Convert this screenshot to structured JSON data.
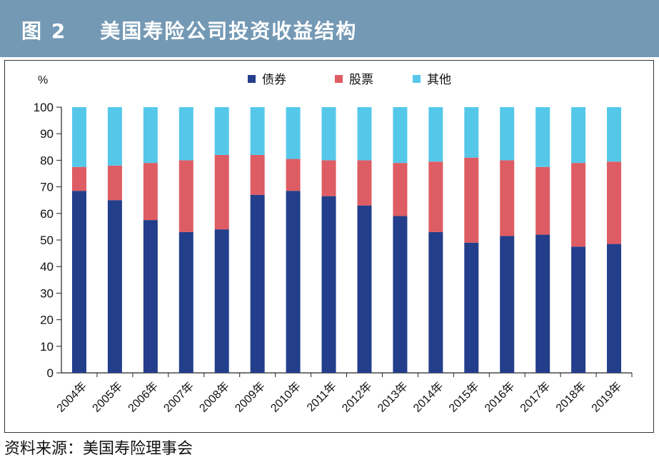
{
  "header": {
    "title": "图 2    美国寿险公司投资收益结构"
  },
  "source": "资料来源：美国寿险理事会",
  "colors": {
    "bonds": "#233e8b",
    "stocks": "#de5c63",
    "other": "#55c8ea",
    "header": "#7499b5"
  },
  "chart_data": {
    "type": "bar",
    "stacked": true,
    "title": "",
    "ylabel": "%",
    "xlabel": "",
    "ylim": [
      0,
      100
    ],
    "yticks": [
      0,
      10,
      20,
      30,
      40,
      50,
      60,
      70,
      80,
      90,
      100
    ],
    "grid": false,
    "legend_position": "top",
    "categories": [
      "2004年",
      "2005年",
      "2006年",
      "2007年",
      "2008年",
      "2009年",
      "2010年",
      "2011年",
      "2012年",
      "2013年",
      "2014年",
      "2015年",
      "2016年",
      "2017年",
      "2018年",
      "2019年"
    ],
    "series": [
      {
        "name": "债券",
        "color": "#233e8b",
        "values": [
          68.5,
          65,
          57.5,
          53,
          54,
          67,
          68.5,
          66.5,
          63,
          59,
          53,
          49,
          51.5,
          52,
          47.5,
          48.5
        ]
      },
      {
        "name": "股票",
        "color": "#de5c63",
        "values": [
          9,
          13,
          21.5,
          27,
          28,
          15,
          12,
          13.5,
          17,
          20,
          26.5,
          32,
          28.5,
          25.5,
          31.5,
          31
        ]
      },
      {
        "name": "其他",
        "color": "#55c8ea",
        "values": [
          22.5,
          22,
          21,
          20,
          18,
          18,
          19.5,
          20,
          20,
          21,
          20.5,
          19,
          20,
          22.5,
          21,
          20.5
        ]
      }
    ]
  }
}
